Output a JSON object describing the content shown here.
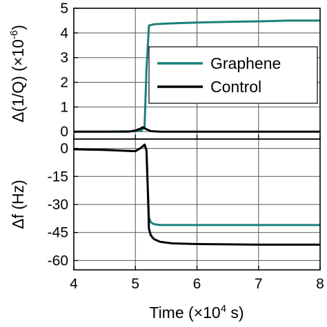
{
  "chart_data": [
    {
      "type": "line",
      "panel": "top",
      "ylabel": "Δ(1/Q) (×10^-6)",
      "ylabel_parts": {
        "main": "Δ(1/Q) (×10",
        "exponent": "-6",
        "close": ")"
      },
      "xlim": [
        4,
        8
      ],
      "ylim": [
        -0.3,
        5
      ],
      "yticks": [
        0,
        1,
        2,
        3,
        4,
        5
      ],
      "xticks": [
        4,
        5,
        6,
        7,
        8
      ],
      "grid": true,
      "legend_position": "center-right",
      "legend": [
        "Graphene",
        "Control"
      ],
      "series": [
        {
          "name": "Graphene",
          "color": "#1a7f7a",
          "x": [
            4.0,
            4.5,
            5.0,
            5.1,
            5.15,
            5.18,
            5.22,
            5.3,
            5.5,
            6.0,
            6.5,
            7.0,
            7.5,
            8.0
          ],
          "y": [
            0.0,
            0.0,
            0.02,
            0.05,
            0.2,
            2.5,
            4.3,
            4.35,
            4.38,
            4.42,
            4.45,
            4.47,
            4.5,
            4.5
          ]
        },
        {
          "name": "Control",
          "color": "#000000",
          "x": [
            4.0,
            4.5,
            4.9,
            5.0,
            5.08,
            5.12,
            5.18,
            5.25,
            5.4,
            6.0,
            7.0,
            8.0
          ],
          "y": [
            0.0,
            0.0,
            0.0,
            0.05,
            0.12,
            0.18,
            0.1,
            0.02,
            0.0,
            0.0,
            0.0,
            0.0
          ]
        }
      ]
    },
    {
      "type": "line",
      "panel": "bottom",
      "ylabel": "Δf (Hz)",
      "xlabel": "Time (×10^4 s)",
      "xlabel_parts": {
        "main": "Time (×10",
        "exponent": "4",
        "close": " s)"
      },
      "xlim": [
        4,
        8
      ],
      "ylim": [
        -65,
        5
      ],
      "yticks": [
        0,
        -15,
        -30,
        -45,
        -60
      ],
      "ytick_labels": [
        "0",
        "-15",
        "-30",
        "-45",
        "-60"
      ],
      "xticks": [
        4,
        5,
        6,
        7,
        8
      ],
      "grid": true,
      "series": [
        {
          "name": "Graphene",
          "color": "#1a7f7a",
          "x": [
            4.0,
            4.5,
            5.0,
            5.1,
            5.15,
            5.18,
            5.2,
            5.22,
            5.25,
            5.3,
            5.4,
            5.6,
            6.0,
            7.0,
            8.0
          ],
          "y": [
            -0.5,
            -0.8,
            -1.5,
            0.5,
            2.0,
            -1.0,
            -20.0,
            -37.0,
            -39.5,
            -40.5,
            -41.0,
            -41.0,
            -41.0,
            -41.0,
            -41.0
          ]
        },
        {
          "name": "Control",
          "color": "#000000",
          "x": [
            4.0,
            4.5,
            5.0,
            5.1,
            5.15,
            5.18,
            5.2,
            5.22,
            5.25,
            5.3,
            5.4,
            5.6,
            6.0,
            7.0,
            8.0
          ],
          "y": [
            -0.5,
            -0.8,
            -1.5,
            0.5,
            2.0,
            -1.0,
            -20.0,
            -43.0,
            -46.5,
            -48.5,
            -50.0,
            -50.8,
            -51.2,
            -51.5,
            -51.5
          ]
        }
      ]
    }
  ]
}
